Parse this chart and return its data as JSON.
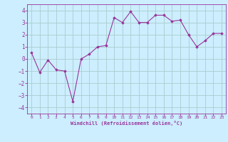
{
  "x": [
    0,
    1,
    2,
    3,
    4,
    5,
    6,
    7,
    8,
    9,
    10,
    11,
    12,
    13,
    14,
    15,
    16,
    17,
    18,
    19,
    20,
    21,
    22,
    23
  ],
  "y": [
    0.5,
    -1.1,
    -0.1,
    -0.9,
    -1.0,
    -3.5,
    0.0,
    0.4,
    1.0,
    1.1,
    3.4,
    3.0,
    3.9,
    3.0,
    3.0,
    3.6,
    3.6,
    3.1,
    3.2,
    2.0,
    1.0,
    1.5,
    2.1,
    2.1
  ],
  "line_color": "#993399",
  "marker": "D",
  "marker_size": 1.8,
  "bg_color": "#cceeff",
  "grid_color": "#aacccc",
  "xlabel": "Windchill (Refroidissement éolien,°C)",
  "xlabel_color": "#993399",
  "tick_color": "#993399",
  "ylim": [
    -4.5,
    4.5
  ],
  "xlim": [
    -0.5,
    23.5
  ],
  "yticks": [
    -4,
    -3,
    -2,
    -1,
    0,
    1,
    2,
    3,
    4
  ],
  "xticks": [
    0,
    1,
    2,
    3,
    4,
    5,
    6,
    7,
    8,
    9,
    10,
    11,
    12,
    13,
    14,
    15,
    16,
    17,
    18,
    19,
    20,
    21,
    22,
    23
  ]
}
